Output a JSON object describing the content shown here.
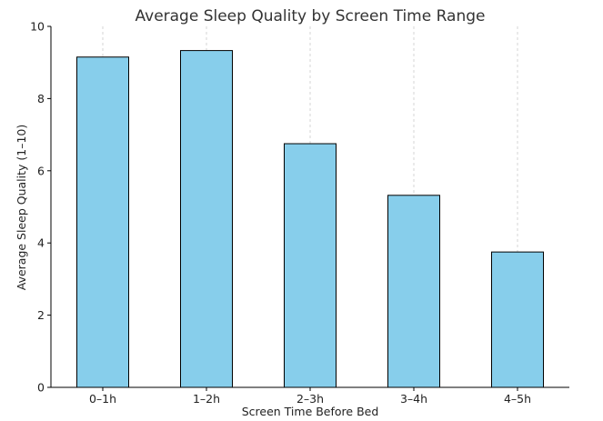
{
  "chart_data": {
    "type": "bar",
    "title": "Average Sleep Quality by Screen Time Range",
    "xlabel": "Screen Time Before Bed",
    "ylabel": "Average Sleep Quality (1–10)",
    "categories": [
      "0–1h",
      "1–2h",
      "2–3h",
      "3–4h",
      "4–5h"
    ],
    "values": [
      9.15,
      9.33,
      6.75,
      5.32,
      3.75
    ],
    "ylim": [
      0,
      10
    ],
    "yticks": [
      0,
      2,
      4,
      6,
      8,
      10
    ],
    "grid": "vertical dashed",
    "bar_color": "#87CEEB",
    "bar_edge_color": "#000000"
  }
}
